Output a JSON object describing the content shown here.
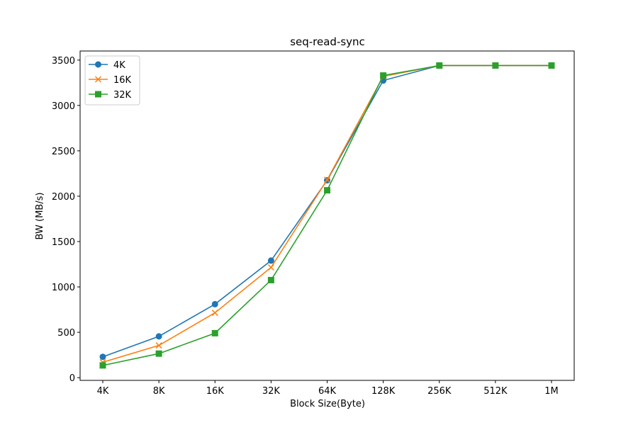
{
  "chart_data": {
    "type": "line",
    "title": "seq-read-sync",
    "xlabel": "Block Size(Byte)",
    "ylabel": "BW (MB/s)",
    "categories": [
      "4K",
      "8K",
      "16K",
      "32K",
      "64K",
      "128K",
      "256K",
      "512K",
      "1M"
    ],
    "ylim": [
      -30,
      3600
    ],
    "yticks": [
      0,
      500,
      1000,
      1500,
      2000,
      2500,
      3000,
      3500
    ],
    "grid": false,
    "legend_position": "top-left",
    "series": [
      {
        "name": "4K",
        "color": "#1f77b4",
        "marker": "circle",
        "values": [
          230,
          455,
          810,
          1290,
          2175,
          3275,
          3440,
          3440,
          3440
        ]
      },
      {
        "name": "16K",
        "color": "#ff7f0e",
        "marker": "x",
        "values": [
          170,
          355,
          715,
          1215,
          2180,
          3320,
          3440,
          3440,
          3440
        ]
      },
      {
        "name": "32K",
        "color": "#2ca02c",
        "marker": "square",
        "values": [
          135,
          265,
          490,
          1075,
          2065,
          3330,
          3440,
          3440,
          3440
        ]
      }
    ]
  }
}
